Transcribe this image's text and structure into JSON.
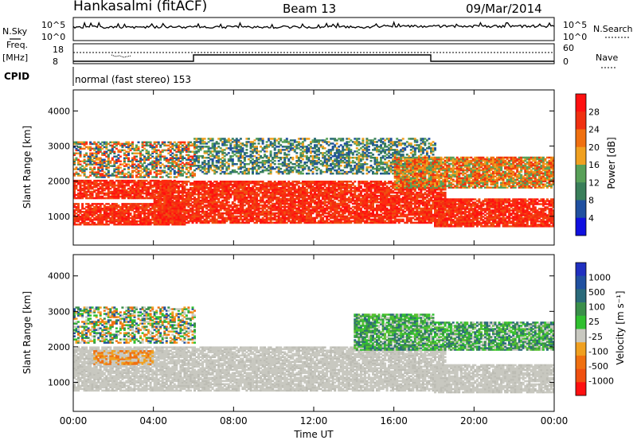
{
  "header": {
    "station": "Hankasalmi (fitACF)",
    "beam": "Beam 13",
    "date": "09/Mar/2014"
  },
  "nsky_panel": {
    "left_label": "N.Sky",
    "right_label": "N.Search",
    "tick_labels": [
      "10^5",
      "10^0"
    ]
  },
  "freq_panel": {
    "left_label_1": "Freq.",
    "left_label_2": "[MHz]",
    "left_ticks": [
      "18",
      "8"
    ],
    "right_ticks": [
      "60",
      "0"
    ],
    "right_label": "Nave"
  },
  "cpid": {
    "label": "CPID",
    "mode_text": "normal (fast stereo) 153"
  },
  "x_axis": {
    "label": "Time UT",
    "ticks": [
      "00:00",
      "04:00",
      "08:00",
      "12:00",
      "16:00",
      "20:00",
      "00:00"
    ]
  },
  "colors": {
    "power_scale": [
      "#1010e0",
      "#2050a0",
      "#3a7f5a",
      "#58a058",
      "#f0a020",
      "#f07010",
      "#f03010",
      "#ff1010"
    ],
    "velocity_scale": [
      "#ff1010",
      "#f05010",
      "#f07010",
      "#f0a020",
      "#c8c8c0",
      "#30c030",
      "#3a8f4a",
      "#2a6a7a",
      "#2050a0",
      "#2030c0"
    ],
    "power_dominant": "#ff3010",
    "velocity_dominant": "#c8c8c0"
  },
  "chart_data": [
    {
      "type": "heatmap",
      "name_key": "power",
      "title": "",
      "xlabel": "Time UT",
      "ylabel": "Slant Range [km]",
      "x_range_hours": [
        0,
        24
      ],
      "ylim": [
        180,
        4600
      ],
      "y_ticks": [
        1000,
        2000,
        3000,
        4000
      ],
      "colorbar": {
        "label": "Power [dB]",
        "ticks": [
          "28",
          "24",
          "20",
          "16",
          "12",
          "8",
          "4"
        ],
        "range": [
          0,
          30
        ]
      },
      "bands": [
        {
          "t_start": 0.0,
          "t_end": 5.5,
          "r_low": 750,
          "r_high": 1350,
          "level": "high"
        },
        {
          "t_start": 0.0,
          "t_end": 5.0,
          "r_low": 1500,
          "r_high": 2000,
          "level": "high"
        },
        {
          "t_start": 4.0,
          "t_end": 18.5,
          "r_low": 800,
          "r_high": 2000,
          "level": "high"
        },
        {
          "t_start": 18.0,
          "t_end": 24.0,
          "r_low": 700,
          "r_high": 1500,
          "level": "high"
        },
        {
          "t_start": 0.0,
          "t_end": 6.0,
          "r_low": 2100,
          "r_high": 3100,
          "level": "mixed"
        },
        {
          "t_start": 6.0,
          "t_end": 18.0,
          "r_low": 2200,
          "r_high": 3200,
          "level": "low"
        },
        {
          "t_start": 16.0,
          "t_end": 24.0,
          "r_low": 1800,
          "r_high": 2700,
          "level": "mid"
        }
      ]
    },
    {
      "type": "heatmap",
      "name_key": "velocity",
      "title": "",
      "xlabel": "Time UT",
      "ylabel": "Slant Range [km]",
      "x_range_hours": [
        0,
        24
      ],
      "ylim": [
        180,
        4600
      ],
      "y_ticks": [
        1000,
        2000,
        3000,
        4000
      ],
      "colorbar": {
        "label": "Velocity [m s⁻¹]",
        "ticks": [
          "1000",
          "500",
          "100",
          "25",
          "-25",
          "-100",
          "-500",
          "-1000"
        ]
      },
      "bands": [
        {
          "t_start": 0.0,
          "t_end": 18.5,
          "r_low": 750,
          "r_high": 2000,
          "level": "zero"
        },
        {
          "t_start": 18.0,
          "t_end": 24.0,
          "r_low": 700,
          "r_high": 1500,
          "level": "zero"
        },
        {
          "t_start": 0.0,
          "t_end": 6.0,
          "r_low": 2100,
          "r_high": 3100,
          "level": "mixed"
        },
        {
          "t_start": 14.0,
          "t_end": 18.0,
          "r_low": 1900,
          "r_high": 2900,
          "level": "positive"
        },
        {
          "t_start": 18.0,
          "t_end": 24.0,
          "r_low": 1900,
          "r_high": 2700,
          "level": "positive"
        },
        {
          "t_start": 1.0,
          "t_end": 4.0,
          "r_low": 1500,
          "r_high": 1900,
          "level": "negative"
        }
      ]
    }
  ]
}
